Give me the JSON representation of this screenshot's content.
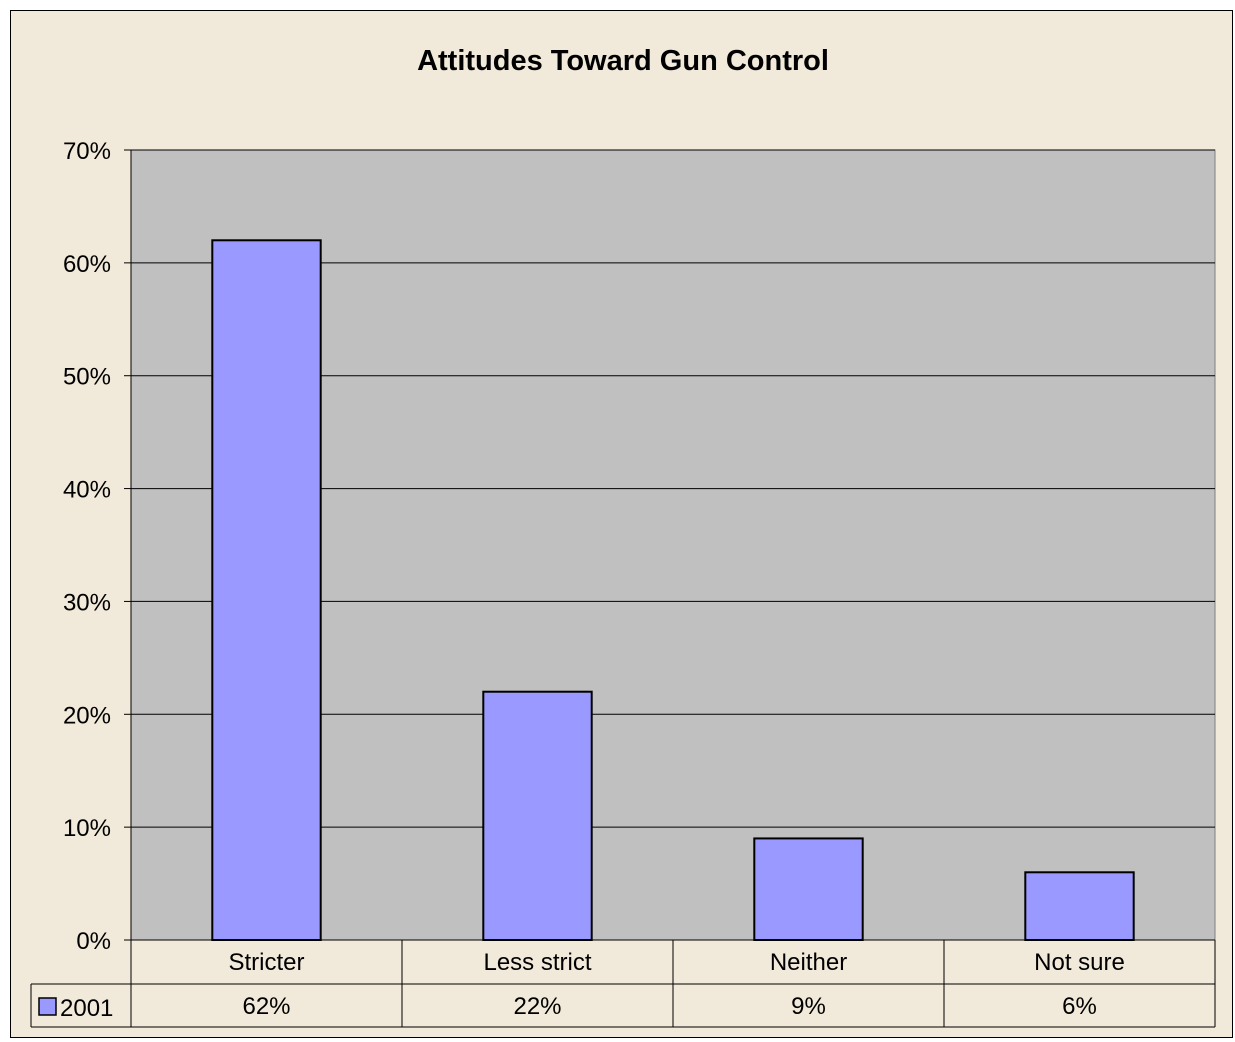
{
  "chart_data": {
    "type": "bar",
    "title": "Attitudes Toward Gun Control",
    "categories": [
      "Stricter",
      "Less strict",
      "Neither",
      "Not sure"
    ],
    "series": [
      {
        "name": "2001",
        "values": [
          62,
          22,
          9,
          6
        ],
        "labels": [
          "62%",
          "22%",
          "9%",
          "6%"
        ],
        "color": "#9999ff"
      }
    ],
    "ylim": [
      0,
      70
    ],
    "yticks": [
      0,
      10,
      20,
      30,
      40,
      50,
      60,
      70
    ],
    "ytick_labels": [
      "0%",
      "10%",
      "20%",
      "30%",
      "40%",
      "50%",
      "60%",
      "70%"
    ],
    "grid": true,
    "legend": "data-table-left",
    "data_table": true,
    "colors": {
      "background": "#f1e9d9",
      "plot_area": "#c0c0c0",
      "bar_fill": "#9999ff",
      "outline": "#000000"
    }
  }
}
